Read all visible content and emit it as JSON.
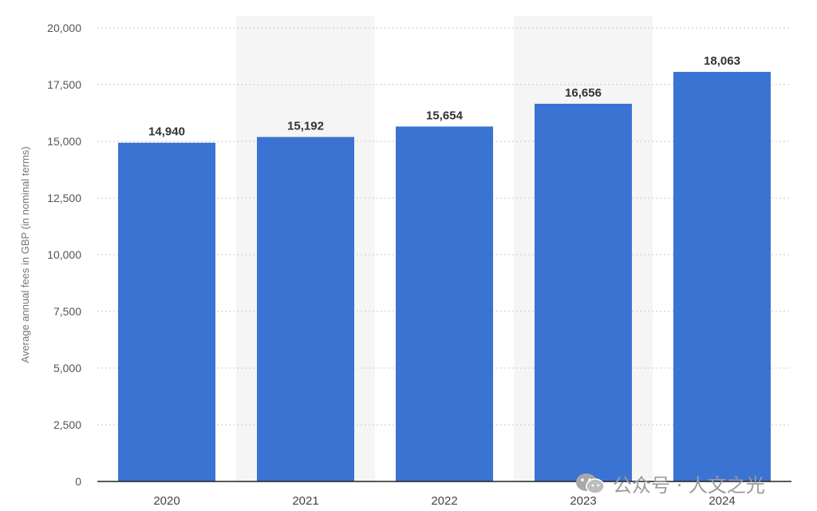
{
  "chart_data": {
    "type": "bar",
    "title": "",
    "xlabel": "",
    "ylabel": "Average annual fees in GBP (in nominal terms)",
    "categories": [
      "2020",
      "2021",
      "2022",
      "2023",
      "2024"
    ],
    "values": [
      14940,
      15192,
      15654,
      16656,
      18063
    ],
    "value_labels": [
      "14,940",
      "15,192",
      "15,654",
      "16,656",
      "18,063"
    ],
    "ylim": [
      0,
      20000
    ],
    "yticks": [
      0,
      2500,
      5000,
      7500,
      10000,
      12500,
      15000,
      17500,
      20000
    ],
    "ytick_labels": [
      "0",
      "2,500",
      "5,000",
      "7,500",
      "10,000",
      "12,500",
      "15,000",
      "17,500",
      "20,000"
    ],
    "grid": true,
    "legend": "none",
    "bar_color": "#3b73d3",
    "band_color": "#f5f5f5"
  },
  "watermark": {
    "icon": "wechat-icon",
    "text": "公众号 · 人文之光"
  }
}
